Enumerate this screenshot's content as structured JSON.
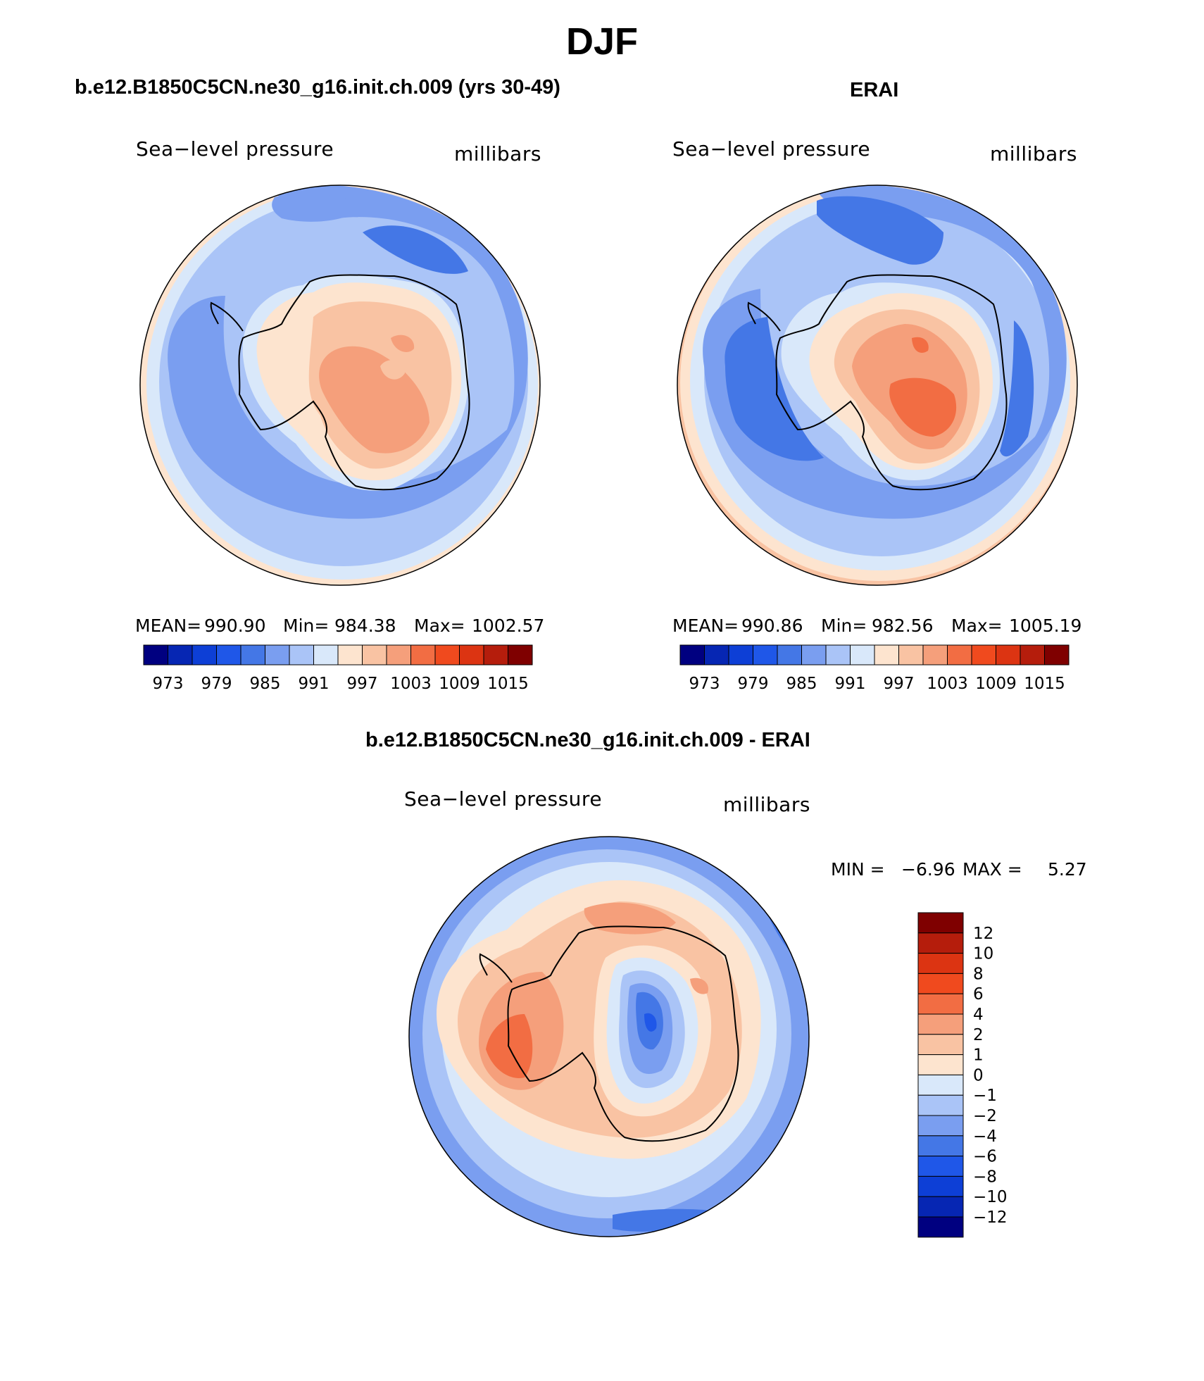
{
  "figure": {
    "title": "DJF"
  },
  "chart_data": [
    {
      "type": "heatmap",
      "panel": "model",
      "title": "b.e12.B1850C5CN.ne30_g16.init.ch.009 (yrs 30-49)",
      "left_label": "Sea−level pressure",
      "right_label": "millibars",
      "stats": {
        "mean_label": "MEAN=",
        "mean": "990.90",
        "min_label": "Min=",
        "min": "984.38",
        "max_label": "Max=",
        "max": "1002.57"
      },
      "levels": [
        "973",
        "979",
        "985",
        "991",
        "997",
        "1003",
        "1009",
        "1015"
      ],
      "colors": [
        "#000080",
        "#0626b3",
        "#0d3fd6",
        "#1f57e8",
        "#4477e6",
        "#7a9ef0",
        "#aac4f7",
        "#d9e8fa",
        "#fde4cf",
        "#f9c3a3",
        "#f59f7b",
        "#f26d43",
        "#f04a1e",
        "#dc3412",
        "#b51d0c",
        "#7f0000"
      ]
    },
    {
      "type": "heatmap",
      "panel": "obs",
      "title": "ERAI",
      "left_label": "Sea−level pressure",
      "right_label": "millibars",
      "stats": {
        "mean_label": "MEAN=",
        "mean": "990.86",
        "min_label": "Min=",
        "min": "982.56",
        "max_label": "Max=",
        "max": "1005.19"
      },
      "levels": [
        "973",
        "979",
        "985",
        "991",
        "997",
        "1003",
        "1009",
        "1015"
      ],
      "colors": [
        "#000080",
        "#0626b3",
        "#0d3fd6",
        "#1f57e8",
        "#4477e6",
        "#7a9ef0",
        "#aac4f7",
        "#d9e8fa",
        "#fde4cf",
        "#f9c3a3",
        "#f59f7b",
        "#f26d43",
        "#f04a1e",
        "#dc3412",
        "#b51d0c",
        "#7f0000"
      ]
    },
    {
      "type": "heatmap",
      "panel": "difference",
      "title": "b.e12.B1850C5CN.ne30_g16.init.ch.009 - ERAI",
      "left_label": "Sea−level pressure",
      "right_label": "millibars",
      "stats": {
        "min_label": "MIN =",
        "min": "−6.96",
        "max_label": "MAX =",
        "max": "5.27"
      },
      "levels": [
        "12",
        "10",
        "8",
        "6",
        "4",
        "2",
        "1",
        "0",
        "−1",
        "−2",
        "−4",
        "−6",
        "−8",
        "−10",
        "−12"
      ],
      "colors": [
        "#7f0000",
        "#b51d0c",
        "#dc3412",
        "#f04a1e",
        "#f26d43",
        "#f59f7b",
        "#f9c3a3",
        "#fde4cf",
        "#d9e8fa",
        "#aac4f7",
        "#7a9ef0",
        "#4477e6",
        "#1f57e8",
        "#0d3fd6",
        "#0626b3",
        "#000080"
      ]
    }
  ]
}
